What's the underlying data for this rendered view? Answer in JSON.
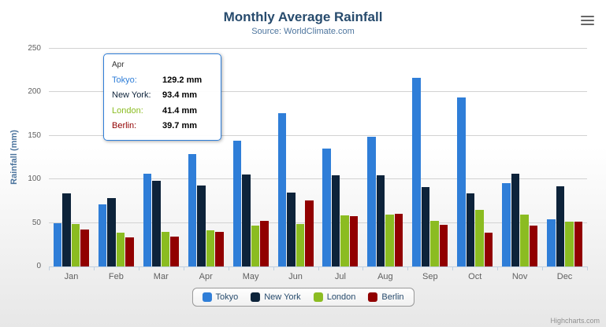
{
  "header": {
    "title": "Monthly Average Rainfall",
    "subtitle": "Source: WorldClimate.com"
  },
  "icons": {
    "export_menu": "hamburger-menu-icon"
  },
  "tooltip": {
    "header": "Apr",
    "rows": [
      {
        "name": "Tokyo:",
        "value": "129.2 mm",
        "color": "#2f7ed8"
      },
      {
        "name": "New York:",
        "value": "93.4 mm",
        "color": "#0d233a"
      },
      {
        "name": "London:",
        "value": "41.4 mm",
        "color": "#8bbc21"
      },
      {
        "name": "Berlin:",
        "value": "39.7 mm",
        "color": "#910000"
      }
    ]
  },
  "credits": {
    "label": "Highcharts.com"
  },
  "chart_data": {
    "type": "bar",
    "title": "Monthly Average Rainfall",
    "subtitle": "Source: WorldClimate.com",
    "categories": [
      "Jan",
      "Feb",
      "Mar",
      "Apr",
      "May",
      "Jun",
      "Jul",
      "Aug",
      "Sep",
      "Oct",
      "Nov",
      "Dec"
    ],
    "series": [
      {
        "name": "Tokyo",
        "color": "#2f7ed8",
        "values": [
          49.9,
          71.5,
          106.4,
          129.2,
          144.0,
          176.0,
          135.6,
          148.5,
          216.4,
          194.1,
          95.6,
          54.4
        ]
      },
      {
        "name": "New York",
        "color": "#0d233a",
        "values": [
          83.6,
          78.8,
          98.5,
          93.4,
          106.0,
          84.5,
          105.0,
          104.3,
          91.2,
          83.5,
          106.6,
          92.3
        ]
      },
      {
        "name": "London",
        "color": "#8bbc21",
        "values": [
          48.9,
          38.8,
          39.3,
          41.4,
          47.0,
          48.3,
          59.0,
          59.6,
          52.4,
          65.2,
          59.3,
          51.2
        ]
      },
      {
        "name": "Berlin",
        "color": "#910000",
        "values": [
          42.4,
          33.2,
          34.5,
          39.7,
          52.6,
          75.5,
          57.4,
          60.4,
          47.6,
          39.1,
          46.8,
          51.1
        ]
      }
    ],
    "xlabel": "",
    "ylabel": "Rainfall (mm)",
    "ylim": [
      0,
      250
    ],
    "ytick_step": 50,
    "grid": true,
    "legend_position": "bottom"
  }
}
